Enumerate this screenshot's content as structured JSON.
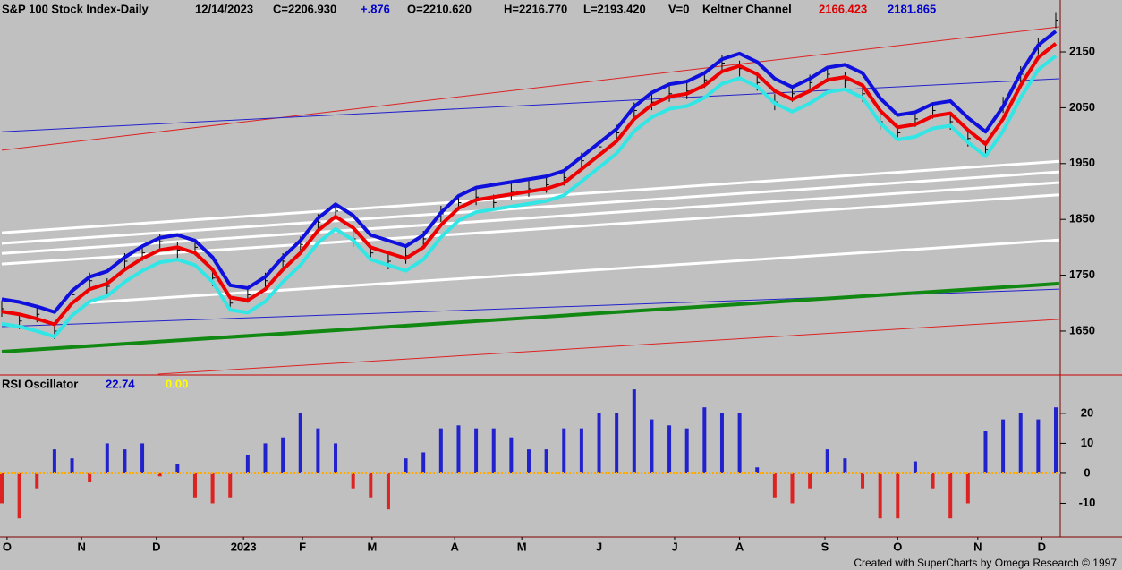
{
  "chart_data": [
    {
      "type": "keltner",
      "header": [
        {
          "text": "S&P 100 Stock Index-Daily",
          "color": "#000000"
        },
        {
          "text": "12/14/2023",
          "color": "#000000"
        },
        {
          "text": "C=2206.930",
          "color": "#000000"
        },
        {
          "text": "+.876",
          "color": "#0000cc"
        },
        {
          "text": "O=2210.620",
          "color": "#000000"
        },
        {
          "text": "H=2216.770",
          "color": "#000000"
        },
        {
          "text": "L=2193.420",
          "color": "#000000"
        },
        {
          "text": "V=0",
          "color": "#000000"
        },
        {
          "text": "Keltner Channel",
          "color": "#000000"
        },
        {
          "text": "2166.423",
          "color": "#dd0000"
        },
        {
          "text": "2181.865",
          "color": "#0000cc"
        }
      ],
      "xlim": [
        0,
        300
      ],
      "xticks": [
        {
          "value": 1.5,
          "label": "O"
        },
        {
          "value": 22.7,
          "label": "N"
        },
        {
          "value": 44,
          "label": "D"
        },
        {
          "value": 68.8,
          "label": "2023"
        },
        {
          "value": 85.6,
          "label": "F"
        },
        {
          "value": 105.4,
          "label": "M"
        },
        {
          "value": 128.9,
          "label": "A"
        },
        {
          "value": 148,
          "label": "M"
        },
        {
          "value": 170,
          "label": "J"
        },
        {
          "value": 191.5,
          "label": "J"
        },
        {
          "value": 210,
          "label": "A"
        },
        {
          "value": 234.3,
          "label": "S"
        },
        {
          "value": 255,
          "label": "O"
        },
        {
          "value": 277.8,
          "label": "N"
        },
        {
          "value": 296,
          "label": "D"
        }
      ],
      "ylim": [
        1573,
        2243
      ],
      "yticks": [
        1650,
        1750,
        1850,
        1950,
        2050,
        2150
      ],
      "x": [
        0,
        5,
        10,
        15,
        20,
        25,
        30,
        35,
        40,
        45,
        50,
        55,
        60,
        65,
        70,
        75,
        80,
        85,
        90,
        95,
        100,
        105,
        110,
        115,
        120,
        125,
        130,
        135,
        140,
        145,
        150,
        155,
        160,
        165,
        170,
        175,
        180,
        185,
        190,
        195,
        200,
        205,
        210,
        215,
        220,
        225,
        230,
        235,
        240,
        245,
        250,
        255,
        260,
        265,
        270,
        275,
        280,
        285,
        290,
        295,
        300
      ],
      "close": {
        "color": "#000000",
        "values": [
          1690,
          1668,
          1680,
          1650,
          1715,
          1740,
          1730,
          1775,
          1790,
          1810,
          1795,
          1800,
          1745,
          1700,
          1715,
          1740,
          1775,
          1805,
          1845,
          1865,
          1815,
          1790,
          1775,
          1785,
          1815,
          1860,
          1880,
          1890,
          1880,
          1900,
          1905,
          1912,
          1925,
          1955,
          1980,
          2005,
          2045,
          2060,
          2075,
          2080,
          2100,
          2130,
          2120,
          2095,
          2060,
          2075,
          2095,
          2110,
          2100,
          2075,
          2025,
          2005,
          2030,
          2045,
          2025,
          1995,
          1975,
          2055,
          2110,
          2160,
          2207
        ]
      },
      "series": [
        {
          "color": "#33e6e6",
          "values": [
            1663,
            1658,
            1650,
            1640,
            1678,
            1703,
            1713,
            1738,
            1758,
            1773,
            1778,
            1768,
            1738,
            1688,
            1683,
            1703,
            1738,
            1768,
            1808,
            1833,
            1813,
            1778,
            1768,
            1758,
            1778,
            1818,
            1848,
            1863,
            1868,
            1873,
            1878,
            1883,
            1893,
            1918,
            1943,
            1968,
            2008,
            2033,
            2048,
            2053,
            2068,
            2093,
            2103,
            2088,
            2058,
            2043,
            2058,
            2078,
            2083,
            2068,
            2023,
            1993,
            1998,
            2013,
            2018,
            1988,
            1963,
            2008,
            2068,
            2118,
            2143
          ]
        },
        {
          "color": "#ee0000",
          "values": [
            1685,
            1680,
            1672,
            1662,
            1700,
            1725,
            1735,
            1760,
            1780,
            1795,
            1800,
            1790,
            1760,
            1710,
            1705,
            1725,
            1760,
            1790,
            1830,
            1855,
            1835,
            1800,
            1790,
            1780,
            1800,
            1840,
            1870,
            1885,
            1890,
            1895,
            1900,
            1905,
            1915,
            1940,
            1965,
            1990,
            2030,
            2055,
            2070,
            2075,
            2090,
            2115,
            2125,
            2110,
            2080,
            2065,
            2080,
            2100,
            2105,
            2090,
            2045,
            2015,
            2020,
            2035,
            2040,
            2010,
            1985,
            2030,
            2090,
            2140,
            2165
          ]
        },
        {
          "color": "#1010dd",
          "values": [
            1707,
            1702,
            1694,
            1684,
            1722,
            1747,
            1757,
            1782,
            1802,
            1817,
            1822,
            1812,
            1782,
            1732,
            1727,
            1747,
            1782,
            1812,
            1852,
            1877,
            1857,
            1822,
            1812,
            1802,
            1822,
            1862,
            1892,
            1907,
            1912,
            1917,
            1922,
            1927,
            1937,
            1962,
            1987,
            2012,
            2052,
            2077,
            2092,
            2097,
            2112,
            2137,
            2147,
            2132,
            2102,
            2087,
            2102,
            2122,
            2127,
            2112,
            2067,
            2037,
            2042,
            2057,
            2062,
            2032,
            2007,
            2052,
            2112,
            2162,
            2187
          ]
        }
      ],
      "trendlines": [
        {
          "color": "#dd2222",
          "x": [
            0,
            301
          ],
          "values": [
            1974,
            2195
          ]
        },
        {
          "color": "#2222cc",
          "x": [
            0,
            301
          ],
          "values": [
            2007,
            2102
          ]
        },
        {
          "color": "#2222cc",
          "x": [
            0,
            301
          ],
          "values": [
            1658,
            1725
          ]
        },
        {
          "color": "#dd2222",
          "x": [
            44.5,
            301
          ],
          "values": [
            1573,
            1671
          ]
        },
        {
          "color": "#ffffff",
          "x": [
            0,
            301
          ],
          "values": [
            1826,
            1954
          ]
        },
        {
          "color": "#ffffff",
          "x": [
            0,
            301
          ],
          "values": [
            1807,
            1935
          ]
        },
        {
          "color": "#ffffff",
          "x": [
            0,
            301
          ],
          "values": [
            1789,
            1916
          ]
        },
        {
          "color": "#ffffff",
          "x": [
            0,
            301
          ],
          "values": [
            1770,
            1894
          ]
        },
        {
          "color": "#ffffff",
          "x": [
            25,
            301
          ],
          "values": [
            1701,
            1813
          ]
        },
        {
          "color": "#118811",
          "x": [
            0,
            301
          ],
          "values": [
            1613,
            1735
          ]
        }
      ]
    },
    {
      "type": "histogram",
      "title": "RSI Oscillator",
      "readings": [
        {
          "text": "22.74",
          "color": "#0000cc"
        },
        {
          "text": "0.00",
          "color": "#ffff00"
        }
      ],
      "ylim": [
        -21.2,
        32.5
      ],
      "yticks": [
        20,
        10,
        0,
        -10
      ],
      "positive_color": "#2222cc",
      "negative_color": "#dd2222",
      "zero_color": "#ffaa00",
      "values": [
        -10,
        -15,
        -5,
        8,
        5,
        -3,
        10,
        8,
        10,
        -1,
        3,
        -8,
        -10,
        -8,
        6,
        10,
        12,
        20,
        15,
        10,
        -5,
        -8,
        -12,
        5,
        7,
        15,
        16,
        15,
        15,
        12,
        8,
        8,
        15,
        15,
        20,
        20,
        28,
        18,
        16,
        15,
        22,
        20,
        20,
        2,
        -8,
        -10,
        -5,
        8,
        5,
        -5,
        -15,
        -15,
        4,
        -5,
        -15,
        -10,
        14,
        18,
        20,
        18,
        22
      ]
    },
    {
      "type": "footer",
      "text": "Created with SuperCharts by Omega Research © 1997"
    }
  ]
}
